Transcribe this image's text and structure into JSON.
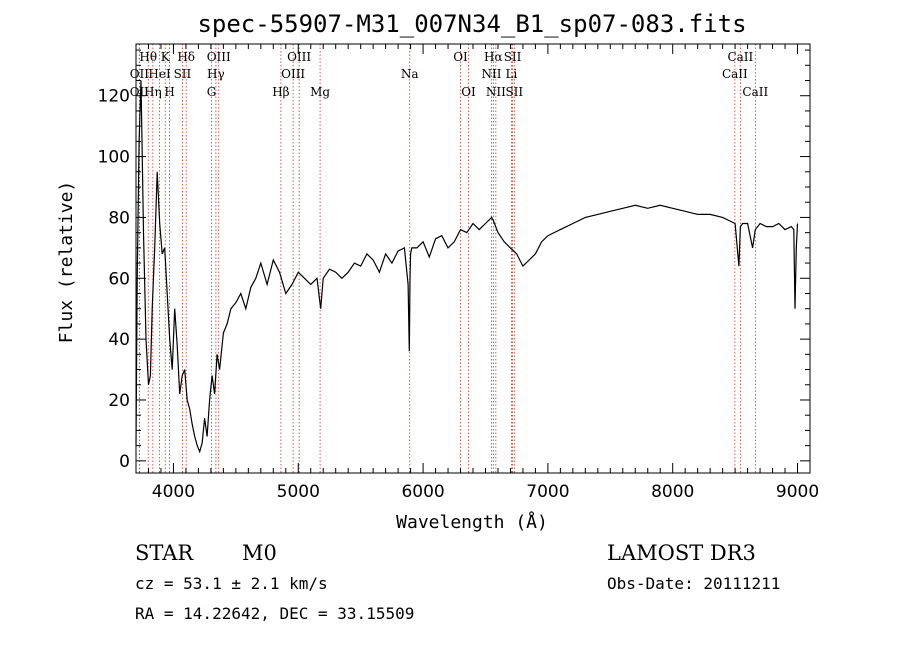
{
  "chart_data": {
    "type": "line",
    "title": "spec-55907-M31_007N34_B1_sp07-083.fits",
    "xlabel": "Wavelength (Å)",
    "ylabel": "Flux (relative)",
    "xlim": [
      3700,
      9100
    ],
    "ylim": [
      -4,
      137
    ],
    "grid": false,
    "x_ticks": [
      4000,
      5000,
      6000,
      7000,
      8000,
      9000
    ],
    "y_ticks": [
      0,
      20,
      40,
      60,
      80,
      100,
      120
    ],
    "series": [
      {
        "name": "flux",
        "x": [
          3700,
          3710,
          3725,
          3740,
          3760,
          3780,
          3800,
          3815,
          3830,
          3850,
          3870,
          3890,
          3910,
          3930,
          3950,
          3970,
          3990,
          4010,
          4030,
          4050,
          4070,
          4090,
          4110,
          4130,
          4150,
          4170,
          4190,
          4210,
          4230,
          4250,
          4270,
          4290,
          4310,
          4330,
          4350,
          4370,
          4400,
          4430,
          4460,
          4500,
          4540,
          4580,
          4620,
          4660,
          4700,
          4750,
          4800,
          4850,
          4900,
          4950,
          5000,
          5050,
          5100,
          5150,
          5180,
          5200,
          5250,
          5300,
          5350,
          5400,
          5450,
          5500,
          5550,
          5600,
          5650,
          5700,
          5750,
          5800,
          5850,
          5880,
          5890,
          5895,
          5900,
          5910,
          5950,
          6000,
          6050,
          6100,
          6150,
          6200,
          6250,
          6300,
          6350,
          6400,
          6450,
          6500,
          6550,
          6563,
          6600,
          6650,
          6700,
          6750,
          6800,
          6850,
          6900,
          6950,
          7000,
          7050,
          7100,
          7150,
          7200,
          7300,
          7400,
          7500,
          7600,
          7700,
          7800,
          7900,
          8000,
          8100,
          8200,
          8300,
          8400,
          8450,
          8500,
          8530,
          8542,
          8560,
          8600,
          8640,
          8662,
          8700,
          8750,
          8800,
          8850,
          8900,
          8950,
          8970,
          8980,
          8990,
          9000
        ],
        "values": [
          5,
          60,
          105,
          125,
          75,
          40,
          25,
          28,
          50,
          70,
          95,
          78,
          68,
          70,
          55,
          40,
          30,
          50,
          38,
          22,
          28,
          30,
          20,
          17,
          12,
          8,
          5,
          3,
          6,
          14,
          8,
          20,
          28,
          22,
          35,
          30,
          42,
          45,
          50,
          52,
          55,
          50,
          57,
          60,
          65,
          58,
          66,
          62,
          55,
          58,
          62,
          60,
          58,
          60,
          50,
          60,
          63,
          62,
          60,
          62,
          65,
          64,
          68,
          66,
          62,
          68,
          65,
          69,
          70,
          58,
          36,
          60,
          68,
          70,
          70,
          72,
          67,
          73,
          74,
          70,
          72,
          76,
          75,
          78,
          76,
          78,
          80,
          79,
          75,
          72,
          70,
          68,
          64,
          66,
          68,
          72,
          74,
          75,
          76,
          77,
          78,
          80,
          81,
          82,
          83,
          84,
          83,
          84,
          83,
          82,
          81,
          81,
          80,
          79,
          78,
          64,
          77,
          78,
          78,
          70,
          76,
          78,
          77,
          77,
          78,
          76,
          77,
          76,
          50,
          70,
          78
        ]
      }
    ],
    "lines": [
      {
        "label": "OII",
        "wave": 3727,
        "row": 2
      },
      {
        "label": "OII",
        "wave": 3727,
        "row": 3
      },
      {
        "label": "Hθ",
        "wave": 3798,
        "row": 1
      },
      {
        "label": "Hη",
        "wave": 3835,
        "row": 3
      },
      {
        "label": "HeI",
        "wave": 3889,
        "row": 2
      },
      {
        "label": "K",
        "wave": 3934,
        "row": 1
      },
      {
        "label": "H",
        "wave": 3969,
        "row": 3
      },
      {
        "label": "SII",
        "wave": 4072,
        "row": 2
      },
      {
        "label": "Hδ",
        "wave": 4102,
        "row": 1
      },
      {
        "label": "OIII",
        "wave": 4363,
        "row": 1
      },
      {
        "label": "Hγ",
        "wave": 4340,
        "row": 2
      },
      {
        "label": "G",
        "wave": 4305,
        "row": 3
      },
      {
        "label": "Hβ",
        "wave": 4861,
        "row": 3
      },
      {
        "label": "OIII",
        "wave": 4959,
        "row": 2
      },
      {
        "label": "OIII",
        "wave": 5007,
        "row": 1
      },
      {
        "label": "Mg",
        "wave": 5175,
        "row": 3
      },
      {
        "label": "Na",
        "wave": 5893,
        "row": 2
      },
      {
        "label": "OI",
        "wave": 6300,
        "row": 1
      },
      {
        "label": "OI",
        "wave": 6364,
        "row": 3
      },
      {
        "label": "NII",
        "wave": 6548,
        "row": 2
      },
      {
        "label": "Hα",
        "wave": 6563,
        "row": 1
      },
      {
        "label": "NII",
        "wave": 6583,
        "row": 3
      },
      {
        "label": "SII",
        "wave": 6717,
        "row": 1
      },
      {
        "label": "Li",
        "wave": 6708,
        "row": 2
      },
      {
        "label": "SII",
        "wave": 6731,
        "row": 3
      },
      {
        "label": "CaII",
        "wave": 8498,
        "row": 2
      },
      {
        "label": "CaII",
        "wave": 8542,
        "row": 1
      },
      {
        "label": "CaII",
        "wave": 8662,
        "row": 3
      }
    ]
  },
  "info": {
    "object_class": "STAR",
    "subclass": "M0",
    "survey": "LAMOST DR3",
    "cz": "cz = 53.1 ± 2.1 km/s",
    "obs_date": "Obs-Date: 20111211",
    "coords": "RA =  14.22642, DEC =  33.15509"
  },
  "colors": {
    "axis": "#000000",
    "spectrum": "#000000",
    "line_marker": "#c0392b"
  }
}
